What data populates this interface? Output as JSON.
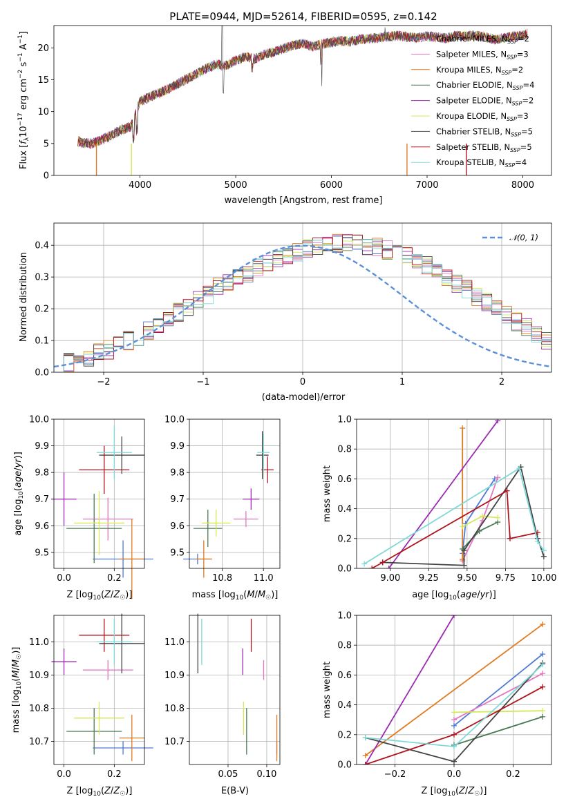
{
  "title": "PLATE=0944, MJD=52614, FIBERID=0595, z=0.142",
  "chart_data": [
    {
      "type": "line",
      "panel": "spectrum",
      "xlabel": "wavelength [Angstrom, rest frame]",
      "ylabel": "Flux [f_λ 10^-17 erg cm^-2 s^-1 A^-1]",
      "xlim": [
        3100,
        8300
      ],
      "ylim": [
        0,
        23.5
      ],
      "xticks": [
        "4000",
        "5000",
        "6000",
        "7000",
        "8000"
      ],
      "yticks": [
        "0",
        "5",
        "10",
        "15",
        "20"
      ],
      "grid": false,
      "legend_placement": "top-right",
      "spectrum_x": [
        3350,
        3400,
        3500,
        3600,
        3700,
        3800,
        3900,
        3950,
        4000,
        4100,
        4200,
        4300,
        4400,
        4500,
        4600,
        4700,
        4800,
        4900,
        5000,
        5100,
        5200,
        5300,
        5400,
        5500,
        5600,
        5700,
        5800,
        5900,
        6000,
        6100,
        6200,
        6300,
        6400,
        6500,
        6600,
        6700,
        6800,
        6900,
        7000,
        7100,
        7200,
        7300,
        7400,
        7500,
        7600,
        7700,
        7800,
        7900,
        8000,
        8050
      ],
      "spectrum_y": [
        5.4,
        5.1,
        5.0,
        5.6,
        6.3,
        7.1,
        7.6,
        9.5,
        11.6,
        12.3,
        12.9,
        13.6,
        14.4,
        15.2,
        16.0,
        16.8,
        17.4,
        17.2,
        18.0,
        18.6,
        18.3,
        18.9,
        19.4,
        19.9,
        20.4,
        20.7,
        20.2,
        20.6,
        20.9,
        21.1,
        21.0,
        21.3,
        21.5,
        21.6,
        21.8,
        21.9,
        21.7,
        21.6,
        21.8,
        21.7,
        21.5,
        21.9,
        21.8,
        22.0,
        21.7,
        21.3,
        21.5,
        21.8,
        21.9,
        22.2
      ]
    },
    {
      "type": "bar",
      "panel": "residual-histogram",
      "xlabel": "(data-model)/error",
      "ylabel": "Normed distribution",
      "xlim": [
        -2.5,
        2.5
      ],
      "ylim": [
        0,
        0.47
      ],
      "xticks": [
        "−2",
        "−1",
        "0",
        "1",
        "2"
      ],
      "yticks": [
        "0.0",
        "0.1",
        "0.2",
        "0.3",
        "0.4"
      ],
      "grid": true,
      "bin_width": 0.1,
      "bin_start": -2.5,
      "histogram_values": [
        0.025,
        0.03,
        0.035,
        0.045,
        0.06,
        0.07,
        0.085,
        0.1,
        0.11,
        0.13,
        0.145,
        0.17,
        0.19,
        0.205,
        0.225,
        0.245,
        0.27,
        0.285,
        0.3,
        0.31,
        0.33,
        0.345,
        0.355,
        0.37,
        0.38,
        0.39,
        0.395,
        0.4,
        0.405,
        0.41,
        0.405,
        0.4,
        0.395,
        0.385,
        0.375,
        0.365,
        0.35,
        0.335,
        0.315,
        0.3,
        0.28,
        0.26,
        0.24,
        0.22,
        0.2,
        0.18,
        0.16,
        0.14,
        0.12,
        0.1
      ],
      "gaussian_label": "𝒩(0, 1)"
    },
    {
      "type": "scatter",
      "panel": "Z-vs-age",
      "xlabel": "Z [log10(Z/Z☉)]",
      "ylabel": "age [log10(age/yr)]",
      "xlim": [
        -0.04,
        0.32
      ],
      "ylim": [
        9.44,
        10.0
      ],
      "xticks": [
        "0.0",
        "0.2"
      ],
      "yticks": [
        "9.5",
        "9.6",
        "9.7",
        "9.8",
        "9.9",
        "10.0"
      ]
    },
    {
      "type": "scatter",
      "panel": "mass-vs-age",
      "xlabel": "mass [log10(M/M☉)]",
      "xlim": [
        10.64,
        11.08
      ],
      "ylim": [
        9.44,
        10.0
      ],
      "xticks": [
        "10.8",
        "11.0"
      ],
      "yticks": [
        "9.5",
        "9.6",
        "9.7",
        "9.8",
        "9.9",
        "10.0"
      ]
    },
    {
      "type": "line",
      "panel": "age-vs-mass-weight",
      "xlabel": "age [log10(age/yr)]",
      "ylabel": "mass weight",
      "xlim": [
        8.78,
        10.05
      ],
      "ylim": [
        0,
        1.0
      ],
      "xticks": [
        "9.00",
        "9.25",
        "9.50",
        "9.75",
        "10.00"
      ],
      "yticks": [
        "0.0",
        "0.2",
        "0.4",
        "0.6",
        "0.8",
        "1.0"
      ]
    },
    {
      "type": "scatter",
      "panel": "Z-vs-mass",
      "xlabel": "Z [log10(Z/Z☉)]",
      "ylabel": "mass [log10(M/M☉)]",
      "xlim": [
        -0.04,
        0.32
      ],
      "ylim": [
        10.63,
        11.08
      ],
      "xticks": [
        "0.0",
        "0.2"
      ],
      "yticks": [
        "10.7",
        "10.8",
        "10.9",
        "11.0"
      ]
    },
    {
      "type": "scatter",
      "panel": "EBV-vs-mass",
      "xlabel": "E(B-V)",
      "xlim": [
        0.0,
        0.117
      ],
      "ylim": [
        10.63,
        11.08
      ],
      "xticks": [
        "0.05",
        "0.10"
      ],
      "yticks": [
        "10.7",
        "10.8",
        "10.9",
        "11.0"
      ]
    },
    {
      "type": "line",
      "panel": "Z-vs-mass-weight",
      "xlabel": "Z [log10(Z/Z☉)]",
      "ylabel": "mass weight",
      "xlim": [
        -0.33,
        0.33
      ],
      "ylim": [
        0,
        1.0
      ],
      "xticks": [
        "−0.2",
        "0.0",
        "0.2"
      ],
      "yticks": [
        "0.0",
        "0.2",
        "0.4",
        "0.6",
        "0.8",
        "1.0"
      ]
    }
  ],
  "models": [
    {
      "name": "Chabrier MILES, N",
      "n": "2",
      "color": "#4e79d6",
      "Z": 0.235,
      "age": 9.475,
      "mass": 10.68,
      "ebv": 0.113,
      "age_xerr": 0.12,
      "age_yerr": 0.07,
      "mass_xerr": 0.07,
      "mass_yerr": 0.02
    },
    {
      "name": "Salpeter MILES, N",
      "n": "3",
      "color": "#e377c2",
      "Z": 0.175,
      "age": 9.625,
      "mass": 10.915,
      "ebv": 0.096,
      "age_xerr": 0.1,
      "age_yerr": 0.08,
      "mass_xerr": 0.06,
      "mass_yerr": 0.03
    },
    {
      "name": "Kroupa MILES, N",
      "n": "2",
      "color": "#e07b22",
      "Z": 0.27,
      "age": 9.475,
      "mass": 10.71,
      "ebv": 0.113,
      "age_xerr": 0.05,
      "age_yerr": 0.15,
      "mass_xerr": 0.04,
      "mass_yerr": 0.07
    },
    {
      "name": "Chabrier ELODIE, N",
      "n": "4",
      "color": "#4a7a55",
      "Z": 0.12,
      "age": 9.59,
      "mass": 10.73,
      "ebv": 0.074,
      "age_xerr": 0.11,
      "age_yerr": 0.13,
      "mass_xerr": 0.07,
      "mass_yerr": 0.07
    },
    {
      "name": "Salpeter ELODIE, N",
      "n": "2",
      "color": "#9b2cb0",
      "Z": 0.0,
      "age": 9.7,
      "mass": 10.94,
      "ebv": 0.069,
      "age_xerr": 0.05,
      "age_yerr": 0.1,
      "mass_xerr": 0.04,
      "mass_yerr": 0.04
    },
    {
      "name": "Kroupa ELODIE, N",
      "n": "3",
      "color": "#d4e85a",
      "Z": 0.14,
      "age": 9.61,
      "mass": 10.77,
      "ebv": 0.07,
      "age_xerr": 0.1,
      "age_yerr": 0.12,
      "mass_xerr": 0.07,
      "mass_yerr": 0.05
    },
    {
      "name": "Chabrier STELIB, N",
      "n": "5",
      "color": "#444444",
      "Z": 0.23,
      "age": 9.865,
      "mass": 10.995,
      "ebv": 0.011,
      "age_xerr": 0.09,
      "age_yerr": 0.07,
      "mass_xerr": 0.03,
      "mass_yerr": 0.09
    },
    {
      "name": "Salpeter STELIB, N",
      "n": "5",
      "color": "#b0141c",
      "Z": 0.16,
      "age": 9.81,
      "mass": 11.02,
      "ebv": 0.08,
      "age_xerr": 0.1,
      "age_yerr": 0.09,
      "mass_xerr": 0.03,
      "mass_yerr": 0.05
    },
    {
      "name": "Kroupa STELIB, N",
      "n": "4",
      "color": "#7fd8d8",
      "Z": 0.2,
      "age": 9.875,
      "mass": 11.0,
      "ebv": 0.016,
      "age_xerr": 0.07,
      "age_yerr": 0.1,
      "mass_xerr": 0.03,
      "mass_yerr": 0.07
    }
  ],
  "legend_sub": "SSP",
  "weights_age": [
    {
      "color": "#4e79d6",
      "pts": [
        [
          9.47,
          0.1
        ],
        [
          9.49,
          0.3
        ],
        [
          9.68,
          0.6
        ]
      ]
    },
    {
      "color": "#e377c2",
      "pts": [
        [
          9.47,
          0.05
        ],
        [
          9.6,
          0.32
        ],
        [
          9.7,
          0.61
        ]
      ]
    },
    {
      "color": "#e07b22",
      "pts": [
        [
          9.47,
          0.06
        ],
        [
          9.47,
          0.94
        ]
      ]
    },
    {
      "color": "#4a7a55",
      "pts": [
        [
          9.47,
          0.13
        ],
        [
          9.58,
          0.25
        ],
        [
          9.7,
          0.31
        ]
      ]
    },
    {
      "color": "#9b2cb0",
      "pts": [
        [
          8.99,
          0.0
        ],
        [
          9.7,
          0.99
        ]
      ]
    },
    {
      "color": "#d4e85a",
      "pts": [
        [
          9.47,
          0.28
        ],
        [
          9.6,
          0.35
        ],
        [
          9.7,
          0.34
        ]
      ]
    },
    {
      "color": "#444444",
      "pts": [
        [
          8.95,
          0.04
        ],
        [
          9.48,
          0.02
        ],
        [
          9.48,
          0.12
        ],
        [
          9.85,
          0.68
        ],
        [
          9.96,
          0.2
        ],
        [
          10.0,
          0.08
        ]
      ]
    },
    {
      "color": "#b0141c",
      "pts": [
        [
          8.88,
          0.0
        ],
        [
          8.95,
          0.04
        ],
        [
          9.76,
          0.52
        ],
        [
          9.78,
          0.2
        ],
        [
          9.96,
          0.24
        ]
      ]
    },
    {
      "color": "#7fd8d8",
      "pts": [
        [
          8.83,
          0.03
        ],
        [
          9.84,
          0.67
        ],
        [
          9.96,
          0.18
        ],
        [
          10.0,
          0.12
        ]
      ]
    }
  ],
  "weights_Z": [
    {
      "color": "#4e79d6",
      "pts": [
        [
          0.0,
          0.26
        ],
        [
          0.3,
          0.74
        ]
      ]
    },
    {
      "color": "#e377c2",
      "pts": [
        [
          0.0,
          0.3
        ],
        [
          0.3,
          0.61
        ]
      ]
    },
    {
      "color": "#e07b22",
      "pts": [
        [
          -0.3,
          0.06
        ],
        [
          0.3,
          0.94
        ]
      ]
    },
    {
      "color": "#4a7a55",
      "pts": [
        [
          0.0,
          0.13
        ],
        [
          0.3,
          0.32
        ]
      ]
    },
    {
      "color": "#9b2cb0",
      "pts": [
        [
          -0.3,
          0.0
        ],
        [
          0.0,
          1.0
        ]
      ]
    },
    {
      "color": "#d4e85a",
      "pts": [
        [
          0.0,
          0.35
        ],
        [
          0.3,
          0.36
        ]
      ]
    },
    {
      "color": "#444444",
      "pts": [
        [
          -0.3,
          0.18
        ],
        [
          0.0,
          0.02
        ],
        [
          0.3,
          0.68
        ]
      ]
    },
    {
      "color": "#b0141c",
      "pts": [
        [
          -0.3,
          0.0
        ],
        [
          0.0,
          0.2
        ],
        [
          0.3,
          0.52
        ]
      ]
    },
    {
      "color": "#7fd8d8",
      "pts": [
        [
          -0.3,
          0.18
        ],
        [
          0.0,
          0.12
        ],
        [
          0.3,
          0.67
        ]
      ]
    }
  ]
}
